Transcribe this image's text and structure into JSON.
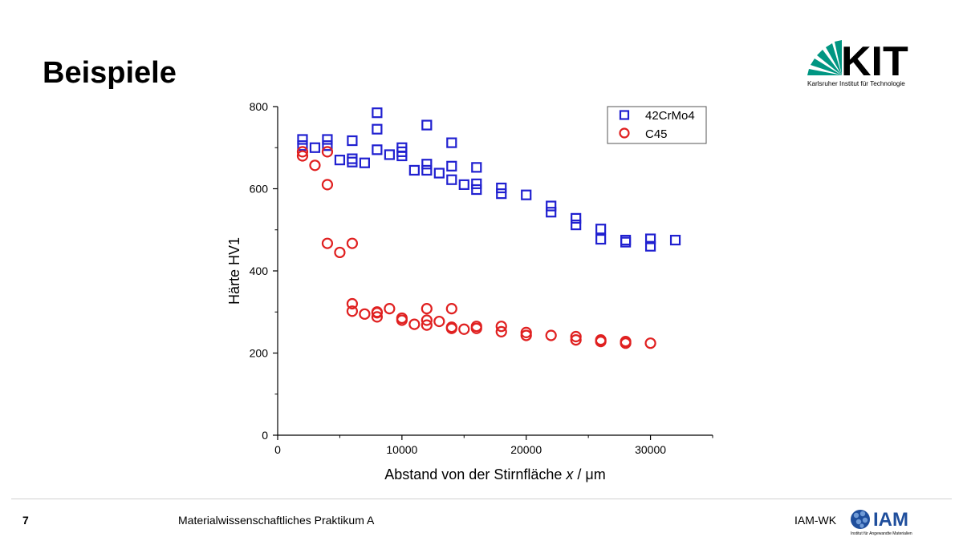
{
  "slide": {
    "title": "Beispiele",
    "page_number": "7",
    "course": "Materialwissenschaftliches Praktikum A",
    "department": "IAM-WK"
  },
  "logos": {
    "kit": {
      "wordmark": "KIT",
      "subtitle": "Karlsruher Institut für Technologie",
      "color": "#009682"
    },
    "iam": {
      "wordmark": "IAM",
      "subtitle": "Institut für Angewandte Materialien",
      "color": "#1f4e9c"
    }
  },
  "chart_data": {
    "type": "scatter",
    "title": "",
    "xlabel": "Abstand von der Stirnfläche",
    "xlabel_symbol": "x",
    "xlabel_unit": " / μm",
    "ylabel": "Härte HV1",
    "xlim": [
      0,
      35000
    ],
    "ylim": [
      0,
      800
    ],
    "xticks": [
      0,
      10000,
      20000,
      30000
    ],
    "yticks": [
      0,
      200,
      400,
      600,
      800
    ],
    "grid": false,
    "legend_position": "top-right",
    "series": [
      {
        "name": "42CrMo4",
        "marker": "square",
        "color": "#2020d0",
        "points": [
          [
            2000,
            720
          ],
          [
            2000,
            705
          ],
          [
            3000,
            700
          ],
          [
            4000,
            720
          ],
          [
            4000,
            705
          ],
          [
            5000,
            670
          ],
          [
            6000,
            717
          ],
          [
            6000,
            673
          ],
          [
            6000,
            665
          ],
          [
            7000,
            663
          ],
          [
            8000,
            785
          ],
          [
            8000,
            745
          ],
          [
            8000,
            695
          ],
          [
            9000,
            683
          ],
          [
            10000,
            700
          ],
          [
            10000,
            690
          ],
          [
            10000,
            680
          ],
          [
            11000,
            645
          ],
          [
            12000,
            755
          ],
          [
            12000,
            660
          ],
          [
            12000,
            645
          ],
          [
            13000,
            638
          ],
          [
            14000,
            712
          ],
          [
            14000,
            655
          ],
          [
            14000,
            622
          ],
          [
            15000,
            610
          ],
          [
            16000,
            652
          ],
          [
            16000,
            612
          ],
          [
            16000,
            598
          ],
          [
            18000,
            602
          ],
          [
            18000,
            588
          ],
          [
            20000,
            585
          ],
          [
            22000,
            558
          ],
          [
            22000,
            543
          ],
          [
            24000,
            528
          ],
          [
            24000,
            512
          ],
          [
            26000,
            502
          ],
          [
            26000,
            477
          ],
          [
            28000,
            475
          ],
          [
            28000,
            470
          ],
          [
            30000,
            478
          ],
          [
            30000,
            460
          ],
          [
            32000,
            475
          ]
        ]
      },
      {
        "name": "C45",
        "marker": "circle",
        "color": "#e02020",
        "points": [
          [
            2000,
            690
          ],
          [
            2000,
            680
          ],
          [
            3000,
            657
          ],
          [
            4000,
            690
          ],
          [
            4000,
            610
          ],
          [
            4000,
            467
          ],
          [
            5000,
            445
          ],
          [
            6000,
            467
          ],
          [
            6000,
            320
          ],
          [
            6000,
            302
          ],
          [
            7000,
            295
          ],
          [
            8000,
            300
          ],
          [
            8000,
            298
          ],
          [
            8000,
            288
          ],
          [
            9000,
            308
          ],
          [
            10000,
            285
          ],
          [
            10000,
            280
          ],
          [
            11000,
            270
          ],
          [
            12000,
            308
          ],
          [
            12000,
            280
          ],
          [
            12000,
            268
          ],
          [
            13000,
            277
          ],
          [
            14000,
            308
          ],
          [
            14000,
            263
          ],
          [
            14000,
            260
          ],
          [
            15000,
            258
          ],
          [
            16000,
            265
          ],
          [
            16000,
            260
          ],
          [
            18000,
            265
          ],
          [
            18000,
            252
          ],
          [
            20000,
            250
          ],
          [
            20000,
            243
          ],
          [
            22000,
            243
          ],
          [
            24000,
            240
          ],
          [
            24000,
            232
          ],
          [
            26000,
            232
          ],
          [
            26000,
            228
          ],
          [
            28000,
            228
          ],
          [
            28000,
            224
          ],
          [
            30000,
            224
          ]
        ]
      }
    ]
  }
}
